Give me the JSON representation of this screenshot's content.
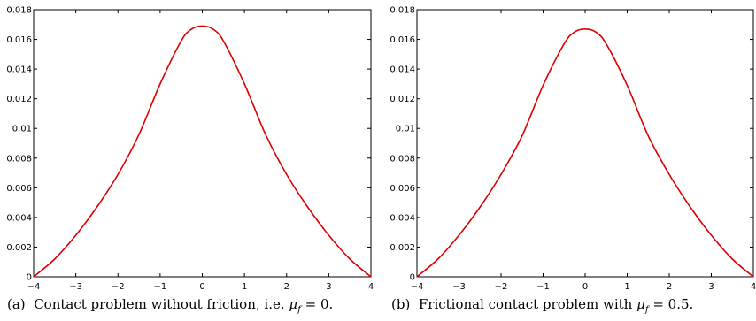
{
  "chart_data": [
    {
      "type": "line",
      "panel_label": "(a)",
      "caption_prefix": "Contact problem without friction, i.e.",
      "caption_math": "μ",
      "caption_sub": "f",
      "caption_suffix": "= 0.",
      "xlim": [
        -4,
        4
      ],
      "ylim": [
        0,
        0.018
      ],
      "xticks": [
        -4,
        -3,
        -2,
        -1,
        0,
        1,
        2,
        3,
        4
      ],
      "xtick_labels": [
        "−4",
        "−3",
        "−2",
        "−1",
        "0",
        "1",
        "2",
        "3",
        "4"
      ],
      "yticks": [
        0,
        0.002,
        0.004,
        0.006,
        0.008,
        0.01,
        0.012,
        0.014,
        0.016,
        0.018
      ],
      "ytick_labels": [
        "0",
        "0.002",
        "0.004",
        "0.006",
        "0.008",
        "0.01",
        "0.012",
        "0.014",
        "0.016",
        "0.018"
      ],
      "grid": false,
      "color": "#dd0000",
      "series": [
        {
          "x": [
            -4,
            -3.5,
            -3,
            -2.5,
            -2,
            -1.5,
            -1,
            -0.5,
            -0.25,
            0,
            0.25,
            0.5,
            1,
            1.5,
            2,
            2.5,
            3,
            3.5,
            4
          ],
          "values": [
            0,
            0.0012,
            0.0028,
            0.0047,
            0.0069,
            0.0096,
            0.013,
            0.0159,
            0.0167,
            0.0169,
            0.0167,
            0.0159,
            0.013,
            0.0096,
            0.0069,
            0.0047,
            0.0028,
            0.0012,
            0
          ]
        }
      ]
    },
    {
      "type": "line",
      "panel_label": "(b)",
      "caption_prefix": "Frictional contact problem with",
      "caption_math": "μ",
      "caption_sub": "f",
      "caption_suffix": "= 0.5.",
      "xlim": [
        -4,
        4
      ],
      "ylim": [
        0,
        0.018
      ],
      "xticks": [
        -4,
        -3,
        -2,
        -1,
        0,
        1,
        2,
        3,
        4
      ],
      "xtick_labels": [
        "−4",
        "−3",
        "−2",
        "−1",
        "0",
        "1",
        "2",
        "3",
        "4"
      ],
      "yticks": [
        0,
        0.002,
        0.004,
        0.006,
        0.008,
        0.01,
        0.012,
        0.014,
        0.016,
        0.018
      ],
      "ytick_labels": [
        "0",
        "0.002",
        "0.004",
        "0.006",
        "0.008",
        "0.01",
        "0.012",
        "0.014",
        "0.016",
        "0.018"
      ],
      "grid": false,
      "color": "#dd0000",
      "series": [
        {
          "x": [
            -4,
            -3.5,
            -3,
            -2.5,
            -2,
            -1.5,
            -1,
            -0.5,
            -0.25,
            0,
            0.25,
            0.5,
            1,
            1.5,
            2,
            2.5,
            3,
            3.5,
            4
          ],
          "values": [
            0,
            0.0012,
            0.0028,
            0.0047,
            0.0069,
            0.0095,
            0.0129,
            0.0157,
            0.0165,
            0.0167,
            0.0165,
            0.0157,
            0.0129,
            0.0095,
            0.0069,
            0.0047,
            0.0028,
            0.0012,
            0
          ]
        }
      ]
    }
  ]
}
